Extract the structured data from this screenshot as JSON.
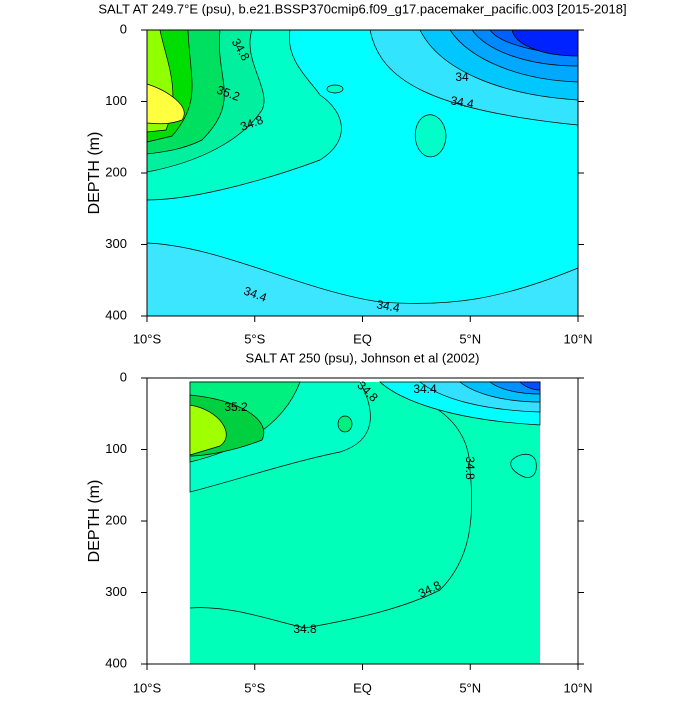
{
  "chart_data": [
    {
      "type": "contour",
      "title": "SALT AT 249.7°E (psu), b.e21.BSSP370cmip6.f09_g17.pacemaker_pacific.003 [2015-2018]",
      "y_label": "DEPTH (m)",
      "ylim": [
        0,
        400
      ],
      "yticks": [
        0,
        100,
        200,
        300,
        400
      ],
      "xlim": [
        -10,
        10
      ],
      "xticks": [
        {
          "value": -10,
          "label": "10°S"
        },
        {
          "value": -5,
          "label": "5°S"
        },
        {
          "value": 0,
          "label": "EQ"
        },
        {
          "value": 5,
          "label": "5°N"
        },
        {
          "value": 10,
          "label": "10°N"
        }
      ],
      "annotations": [
        "34.8",
        "35.2",
        "34.8",
        "34",
        "34.4",
        "34.4",
        "34.4"
      ]
    },
    {
      "type": "contour",
      "title": "SALT AT 250 (psu), Johnson et al (2002)",
      "y_label": "DEPTH (m)",
      "ylim": [
        0,
        400
      ],
      "yticks": [
        0,
        100,
        200,
        300,
        400
      ],
      "xlim": [
        -10,
        10
      ],
      "xticks": [
        {
          "value": -10,
          "label": "10°S"
        },
        {
          "value": -5,
          "label": "5°S"
        },
        {
          "value": 0,
          "label": "EQ"
        },
        {
          "value": 5,
          "label": "5°N"
        },
        {
          "value": 10,
          "label": "10°N"
        }
      ],
      "annotations": [
        "35.2",
        "34.8",
        "34.4",
        "34.8",
        "34.8",
        "34.8"
      ]
    }
  ]
}
